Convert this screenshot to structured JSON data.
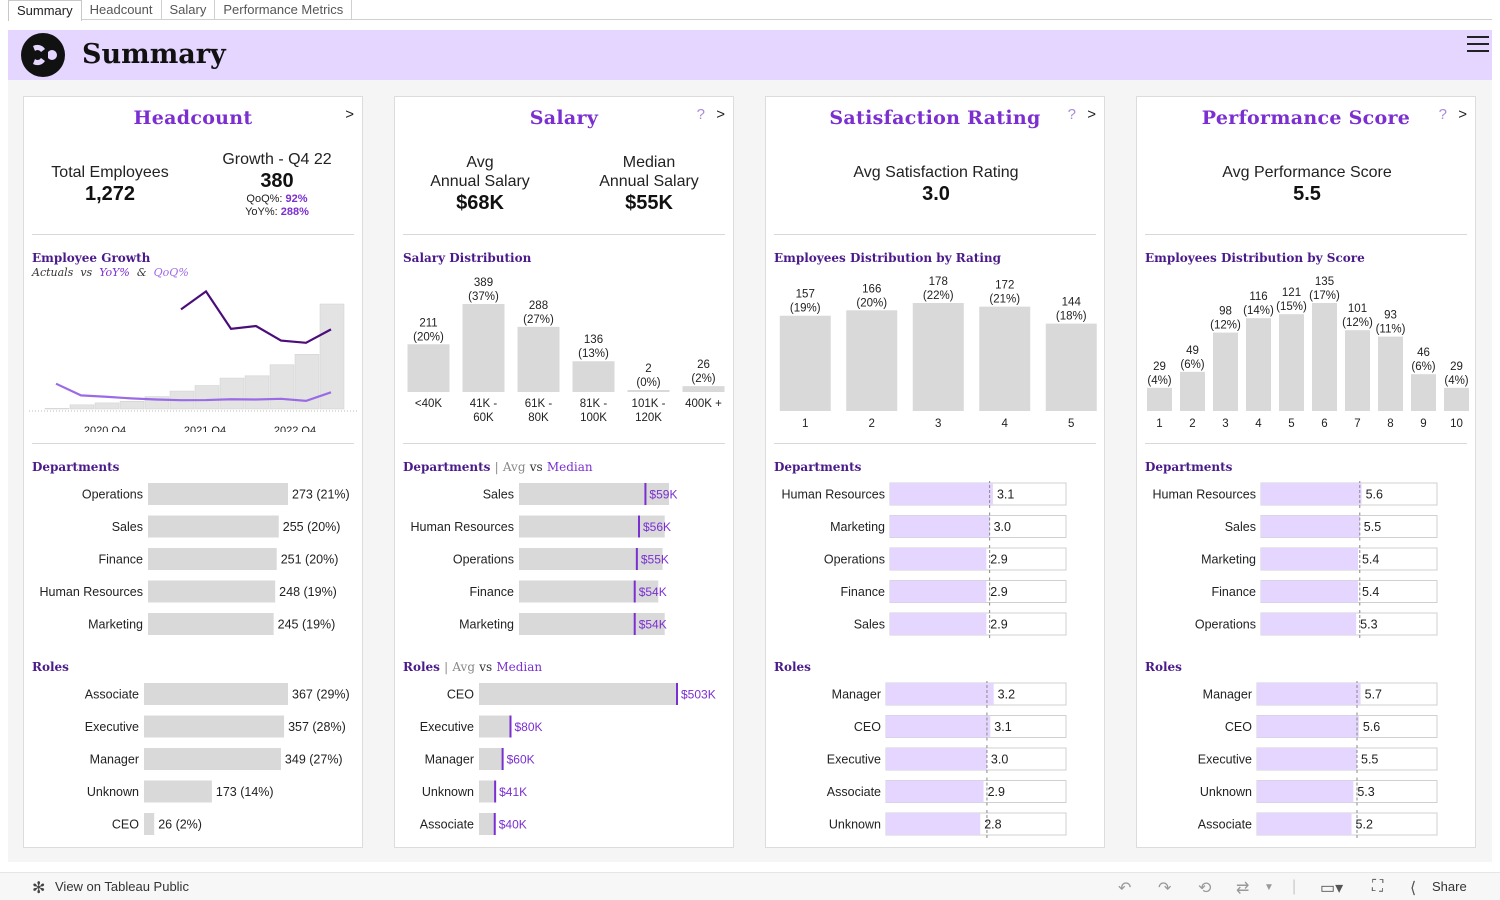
{
  "tabs": [
    "Summary",
    "Headcount",
    "Salary",
    "Performance Metrics"
  ],
  "banner": {
    "title": "Summary",
    "accent": "#e5d6ff"
  },
  "colors": {
    "purple": "#7b2fd1",
    "dark_purple": "#4a1a8a",
    "light_purple": "#e5d6ff",
    "bar_gray": "#d9d9d9",
    "line_dark": "#4a0d7a",
    "line_light": "#9b6be6"
  },
  "headcount": {
    "title": "Headcount",
    "arrow": ">",
    "total_label": "Total Employees",
    "total_value": "1,272",
    "growth_label": "Growth - Q4 22",
    "growth_value": "380",
    "qoq_label": "QoQ%:",
    "qoq_value": "92%",
    "yoy_label": "YoY%:",
    "yoy_value": "288%",
    "chart_title": "Employee Growth",
    "chart_sub_actuals": "Actuals",
    "chart_sub_vs": "vs",
    "chart_sub_yoy": "YoY%",
    "chart_sub_amp": "&",
    "chart_sub_qoq": "QoQ%",
    "departments_label": "Departments",
    "roles_label": "Roles"
  },
  "salary": {
    "title": "Salary",
    "help": "?",
    "arrow": ">",
    "avg_label_1": "Avg",
    "avg_label_2": "Annual Salary",
    "avg_value": "$68K",
    "median_label_1": "Median",
    "median_label_2": "Annual Salary",
    "median_value": "$55K",
    "dist_label": "Salary Distribution",
    "departments_label": "Departments",
    "roles_label": "Roles",
    "sep": "|",
    "avg_word": "Avg",
    "vs_word": "vs",
    "median_word": "Median"
  },
  "satisfaction": {
    "title": "Satisfaction  Rating",
    "help": "?",
    "arrow": ">",
    "kpi_label": "Avg Satisfaction Rating",
    "kpi_value": "3.0",
    "dist_label": "Employees  Distribution  by  Rating",
    "departments_label": "Departments",
    "roles_label": "Roles"
  },
  "performance": {
    "title": "Performance  Score",
    "help": "?",
    "arrow": ">",
    "kpi_label": "Avg Performance Score",
    "kpi_value": "5.5",
    "dist_label": "Employees  Distribution  by  Score",
    "departments_label": "Departments",
    "roles_label": "Roles"
  },
  "toolbar": {
    "view_label": "View on Tableau Public",
    "share_label": "Share"
  },
  "chart_data": [
    {
      "id": "employee_growth",
      "type": "bar",
      "title": "Employee Growth",
      "tick_labels": [
        "2020 Q4",
        "2021 Q4",
        "2022 Q4"
      ],
      "values": [
        2,
        15,
        22,
        28,
        45,
        65,
        85,
        112,
        120,
        160,
        198,
        380
      ],
      "series": [
        {
          "name": "YoY%",
          "values": [
            null,
            null,
            null,
            null,
            null,
            388,
            478,
            291,
            305,
            232,
            221,
            288
          ]
        },
        {
          "name": "QoQ%",
          "values": [
            155,
            70,
            60,
            48,
            40,
            35,
            36,
            42,
            40,
            45,
            30,
            92
          ]
        }
      ]
    },
    {
      "id": "salary_distribution",
      "type": "bar",
      "title": "Salary Distribution",
      "categories": [
        "<40K",
        "41K - 60K",
        "61K - 80K",
        "81K - 100K",
        "101K - 120K",
        "400K +"
      ],
      "values": [
        211,
        389,
        288,
        136,
        2,
        26
      ],
      "labels": [
        "211\n(20%)",
        "389\n(37%)",
        "288\n(27%)",
        "136\n(13%)",
        "2\n(0%)",
        "26\n(2%)"
      ]
    },
    {
      "id": "rating_distribution",
      "type": "bar",
      "title": "Employees  Distribution  by  Rating",
      "categories": [
        "1",
        "2",
        "3",
        "4",
        "5"
      ],
      "values": [
        157,
        166,
        178,
        172,
        144
      ],
      "labels": [
        "157\n(19%)",
        "166\n(20%)",
        "178\n(22%)",
        "172\n(21%)",
        "144\n(18%)"
      ]
    },
    {
      "id": "score_distribution",
      "type": "bar",
      "title": "Employees  Distribution  by  Score",
      "categories": [
        "1",
        "2",
        "3",
        "4",
        "5",
        "6",
        "7",
        "8",
        "9",
        "10"
      ],
      "values": [
        29,
        49,
        98,
        116,
        121,
        135,
        101,
        93,
        46,
        29
      ],
      "labels": [
        "29\n(4%)",
        "49\n(6%)",
        "98\n(12%)",
        "116\n(14%)",
        "121\n(15%)",
        "135\n(17%)",
        "101\n(12%)",
        "93\n(11%)",
        "46\n(6%)",
        "29\n(4%)"
      ]
    },
    {
      "id": "headcount_departments",
      "type": "bar",
      "categories": [
        "Operations",
        "Sales",
        "Finance",
        "Human Resources",
        "Marketing"
      ],
      "values": [
        273,
        255,
        251,
        248,
        245
      ],
      "labels": [
        "273 (21%)",
        "255 (20%)",
        "251 (20%)",
        "248 (19%)",
        "245 (19%)"
      ]
    },
    {
      "id": "headcount_roles",
      "type": "bar",
      "categories": [
        "Associate",
        "Executive",
        "Manager",
        "Unknown",
        "CEO"
      ],
      "values": [
        367,
        357,
        349,
        173,
        26
      ],
      "labels": [
        "367 (29%)",
        "357 (28%)",
        "349 (27%)",
        "173 (14%)",
        "26 (2%)"
      ]
    },
    {
      "id": "salary_departments",
      "type": "bar",
      "categories": [
        "Sales",
        "Human Resources",
        "Operations",
        "Finance",
        "Marketing"
      ],
      "series": [
        {
          "name": "Avg",
          "values": [
            70,
            68,
            67,
            65,
            68
          ]
        },
        {
          "name": "Median",
          "values": [
            59,
            56,
            55,
            54,
            54
          ]
        }
      ],
      "labels": [
        "$59K",
        "$56K",
        "$55K",
        "$54K",
        "$54K"
      ]
    },
    {
      "id": "salary_roles",
      "type": "bar",
      "categories": [
        "CEO",
        "Executive",
        "Manager",
        "Unknown",
        "Associate"
      ],
      "series": [
        {
          "name": "Avg",
          "values": [
            503,
            82,
            61,
            43,
            42
          ]
        },
        {
          "name": "Median",
          "values": [
            503,
            80,
            60,
            41,
            40
          ]
        }
      ],
      "labels": [
        "$503K",
        "$80K",
        "$60K",
        "$41K",
        "$40K"
      ]
    },
    {
      "id": "satisfaction_departments",
      "type": "bar",
      "categories": [
        "Human Resources",
        "Marketing",
        "Operations",
        "Finance",
        "Sales"
      ],
      "values": [
        3.1,
        3.0,
        2.9,
        2.9,
        2.9
      ],
      "labels": [
        "3.1",
        "3.0",
        "2.9",
        "2.9",
        "2.9"
      ],
      "reference": 3.0
    },
    {
      "id": "satisfaction_roles",
      "type": "bar",
      "categories": [
        "Manager",
        "CEO",
        "Executive",
        "Associate",
        "Unknown"
      ],
      "values": [
        3.2,
        3.1,
        3.0,
        2.9,
        2.8
      ],
      "labels": [
        "3.2",
        "3.1",
        "3.0",
        "2.9",
        "2.8"
      ],
      "reference": 3.0
    },
    {
      "id": "performance_departments",
      "type": "bar",
      "categories": [
        "Human Resources",
        "Sales",
        "Marketing",
        "Finance",
        "Operations"
      ],
      "values": [
        5.6,
        5.5,
        5.4,
        5.4,
        5.3
      ],
      "labels": [
        "5.6",
        "5.5",
        "5.4",
        "5.4",
        "5.3"
      ],
      "reference": 5.5
    },
    {
      "id": "performance_roles",
      "type": "bar",
      "categories": [
        "Manager",
        "CEO",
        "Executive",
        "Unknown",
        "Associate"
      ],
      "values": [
        5.7,
        5.6,
        5.5,
        5.3,
        5.2
      ],
      "labels": [
        "5.7",
        "5.6",
        "5.5",
        "5.3",
        "5.2"
      ],
      "reference": 5.5
    }
  ]
}
